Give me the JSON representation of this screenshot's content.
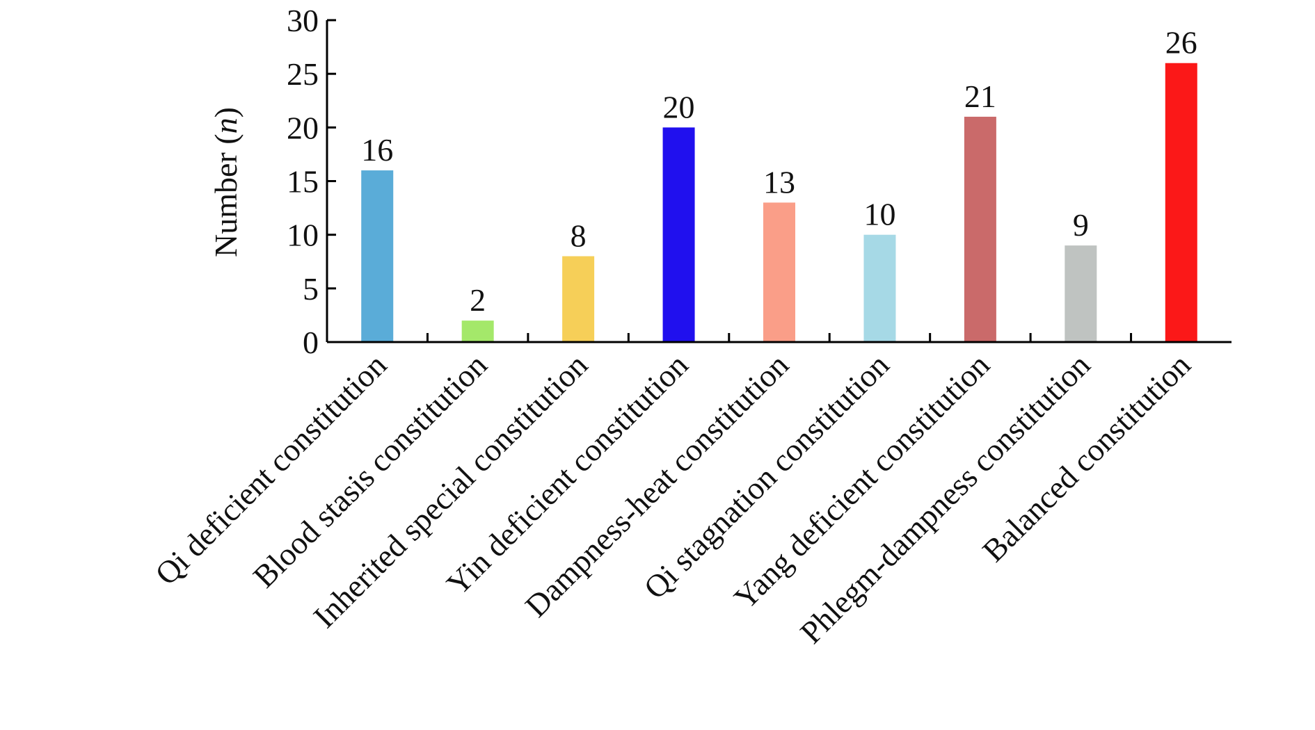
{
  "chart_data": {
    "type": "bar",
    "title": "",
    "xlabel": "",
    "ylabel": "Number (",
    "ylabel_italic": "n",
    "ylabel_suffix": ")",
    "ylim": [
      0,
      30
    ],
    "yticks": [
      "0",
      "5",
      "10",
      "15",
      "20",
      "25",
      "30"
    ],
    "ytick_values": [
      0,
      5,
      10,
      15,
      20,
      25,
      30
    ],
    "grid": false,
    "legend": "none",
    "categories": [
      "Qi deficient constitution",
      "Blood stasis constitution",
      "Inherited special constitution",
      "Yin deficient constitution",
      "Dampness-heat constitution",
      "Qi stagnation constitution",
      "Yang deficient constitution",
      "Phlegm-dampness constitution",
      "Balanced constitution"
    ],
    "values": [
      16,
      2,
      8,
      20,
      13,
      10,
      21,
      9,
      26
    ],
    "data_labels": [
      "16",
      "2",
      "8",
      "20",
      "13",
      "10",
      "21",
      "9",
      "26"
    ],
    "colors": [
      "#5aacd8",
      "#a4e86a",
      "#f6cf58",
      "#2010ee",
      "#fa9e88",
      "#a6d9e6",
      "#ca6a6a",
      "#bfc3c1",
      "#fb1818"
    ]
  }
}
